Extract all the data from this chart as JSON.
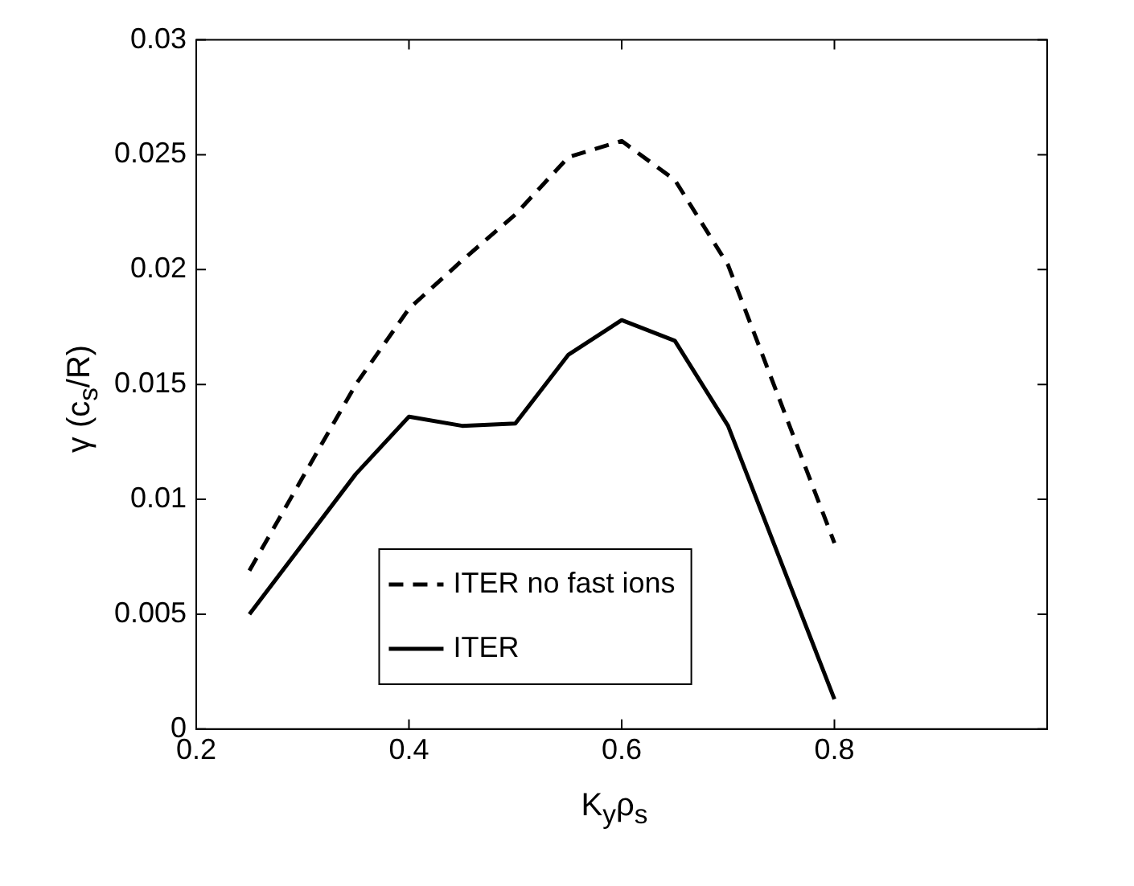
{
  "chart_data": {
    "type": "line",
    "xlabel": "K$_{y}$ρ$_{s}$",
    "ylabel": "γ (c$_{s}$/R)",
    "xlim": [
      0.2,
      1
    ],
    "xticks": [
      0.2,
      0.4,
      0.6,
      0.8
    ],
    "ylim": [
      0,
      0.03
    ],
    "yticks": [
      0,
      0.005,
      0.01,
      0.015,
      0.02,
      0.025,
      0.03
    ],
    "grid": false,
    "legend": "bottom left",
    "marker": "none",
    "series": [
      {
        "name": "ITER no fast ions",
        "color": "#000000",
        "line_style": "dashed",
        "x": [
          0.25,
          0.35,
          0.4,
          0.45,
          0.5,
          0.55,
          0.6,
          0.65,
          0.7,
          0.8
        ],
        "values": [
          0.0069,
          0.015,
          0.0183,
          0.0204,
          0.0224,
          0.0249,
          0.0256,
          0.0239,
          0.0202,
          0.0081
        ]
      },
      {
        "name": "ITER",
        "color": "#000000",
        "line_style": "solid",
        "x": [
          0.25,
          0.35,
          0.4,
          0.45,
          0.5,
          0.55,
          0.6,
          0.65,
          0.7,
          0.8
        ],
        "values": [
          0.005,
          0.0111,
          0.0136,
          0.0132,
          0.0133,
          0.0163,
          0.0178,
          0.0169,
          0.0132,
          0.0013
        ]
      }
    ]
  }
}
